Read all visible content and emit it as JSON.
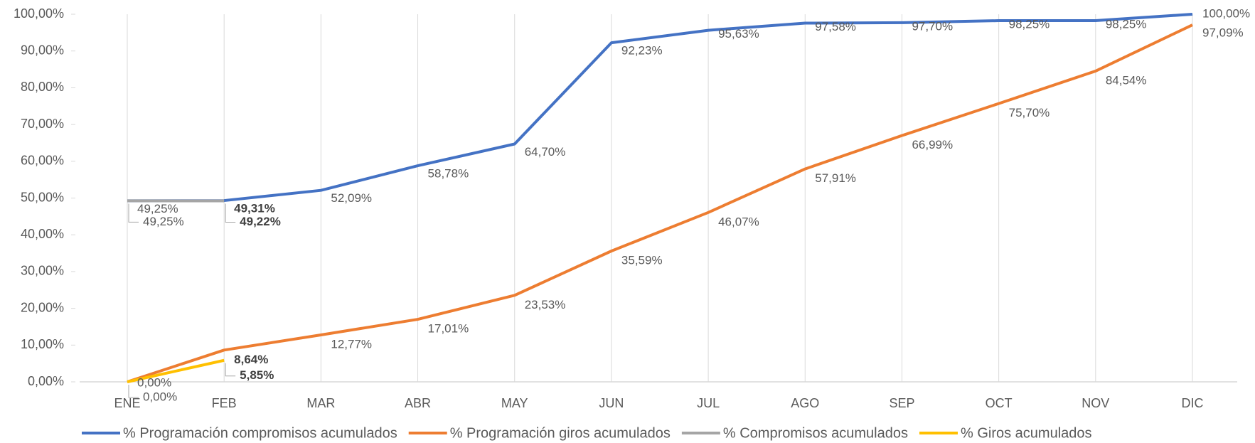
{
  "chart_data": {
    "type": "line",
    "categories": [
      "ENE",
      "FEB",
      "MAR",
      "ABR",
      "MAY",
      "JUN",
      "JUL",
      "AGO",
      "SEP",
      "OCT",
      "NOV",
      "DIC"
    ],
    "series": [
      {
        "name": "% Programación compromisos acumulados",
        "color": "#4472c4",
        "values": [
          49.25,
          49.31,
          52.09,
          58.78,
          64.7,
          92.23,
          95.63,
          97.58,
          97.7,
          98.25,
          98.25,
          100.0
        ],
        "value_labels": [
          "49,25%",
          "49,31%",
          "52,09%",
          "58,78%",
          "64,70%",
          "92,23%",
          "95,63%",
          "97,58%",
          "97,70%",
          "98,25%",
          "98,25%",
          "100,00%"
        ]
      },
      {
        "name": "% Programación giros acumulados",
        "color": "#ed7d31",
        "values": [
          0.0,
          8.64,
          12.77,
          17.01,
          23.53,
          35.59,
          46.07,
          57.91,
          66.99,
          75.7,
          84.54,
          97.09
        ],
        "value_labels": [
          "0,00%",
          "8,64%",
          "12,77%",
          "17,01%",
          "23,53%",
          "35,59%",
          "46,07%",
          "57,91%",
          "66,99%",
          "75,70%",
          "84,54%",
          "97,09%"
        ]
      },
      {
        "name": "% Compromisos acumulados",
        "color": "#a5a5a5",
        "values": [
          49.25,
          49.22,
          null,
          null,
          null,
          null,
          null,
          null,
          null,
          null,
          null,
          null
        ],
        "value_labels": [
          "49,25%",
          "49,22%",
          null,
          null,
          null,
          null,
          null,
          null,
          null,
          null,
          null,
          null
        ]
      },
      {
        "name": "% Giros acumulados",
        "color": "#ffc000",
        "values": [
          0.0,
          5.85,
          null,
          null,
          null,
          null,
          null,
          null,
          null,
          null,
          null,
          null
        ],
        "value_labels": [
          "0,00%",
          "5,85%",
          null,
          null,
          null,
          null,
          null,
          null,
          null,
          null,
          null,
          null
        ]
      }
    ],
    "ylim": [
      0,
      100
    ],
    "yticks": [
      {
        "value": 0,
        "label": "0,00%"
      },
      {
        "value": 10,
        "label": "10,00%"
      },
      {
        "value": 20,
        "label": "20,00%"
      },
      {
        "value": 30,
        "label": "30,00%"
      },
      {
        "value": 40,
        "label": "40,00%"
      },
      {
        "value": 50,
        "label": "50,00%"
      },
      {
        "value": 60,
        "label": "60,00%"
      },
      {
        "value": 70,
        "label": "70,00%"
      },
      {
        "value": 80,
        "label": "80,00%"
      },
      {
        "value": 90,
        "label": "90,00%"
      },
      {
        "value": 100,
        "label": "100,00%"
      }
    ],
    "legend": "bottom"
  }
}
